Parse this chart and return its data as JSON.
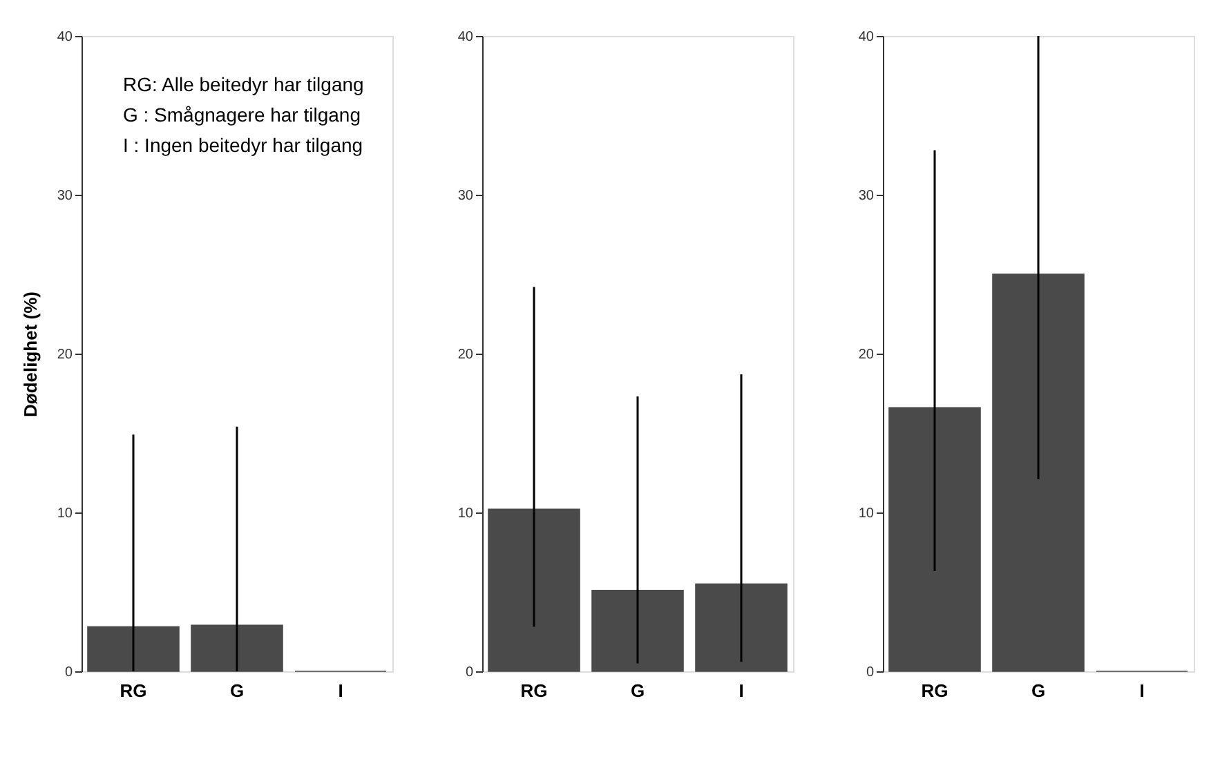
{
  "chart_data": [
    {
      "type": "bar",
      "ylabel": "Dødelighet (%)",
      "categories": [
        "RG",
        "G",
        "I"
      ],
      "values": [
        2.8,
        2.9,
        0
      ],
      "color": "#4a4a4a",
      "errors": [
        [
          0,
          14.9
        ],
        [
          0,
          15.4
        ],
        null
      ],
      "ylim": [
        0,
        40
      ],
      "yticks": [
        0,
        10,
        20,
        30,
        40
      ],
      "annotations": [
        "RG: Alle beitedyr har tilgang",
        "G  : Smågnagere har tilgang",
        "I    : Ingen beitedyr har tilgang"
      ]
    },
    {
      "type": "bar",
      "categories": [
        "RG",
        "G",
        "I"
      ],
      "values": [
        10.2,
        5.1,
        5.5
      ],
      "color": "#4a4a4a",
      "errors": [
        [
          2.8,
          24.2
        ],
        [
          0.5,
          17.3
        ],
        [
          0.6,
          18.7
        ]
      ],
      "ylim": [
        0,
        40
      ],
      "yticks": [
        0,
        10,
        20,
        30,
        40
      ]
    },
    {
      "type": "bar",
      "categories": [
        "RG",
        "G",
        "I"
      ],
      "values": [
        16.6,
        25.0,
        0
      ],
      "color": "#4a4a4a",
      "errors": [
        [
          6.3,
          32.8
        ],
        [
          12.1,
          40
        ],
        null
      ],
      "ylim": [
        0,
        40
      ],
      "yticks": [
        0,
        10,
        20,
        30,
        40
      ]
    }
  ]
}
